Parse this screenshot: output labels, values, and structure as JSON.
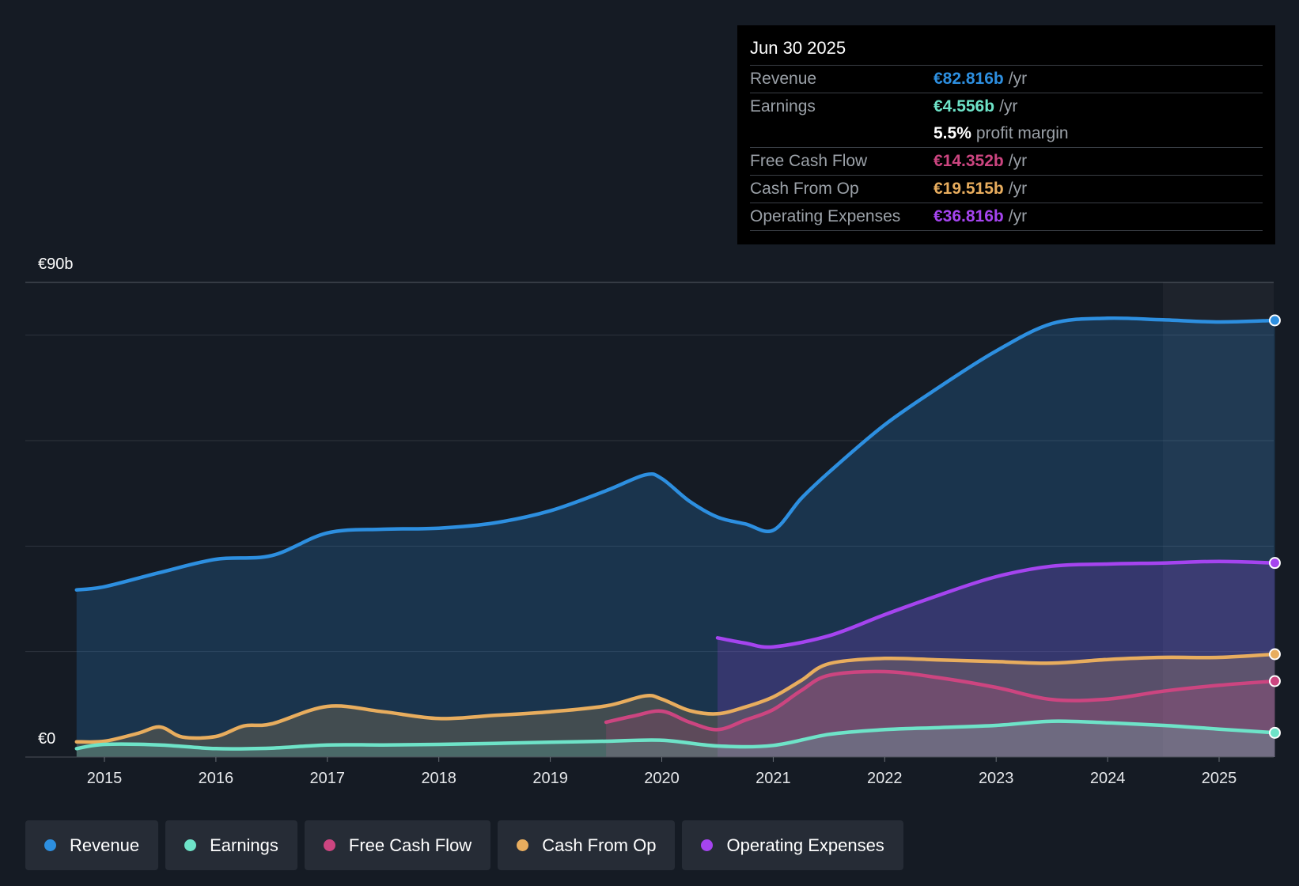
{
  "chart_data": {
    "type": "area",
    "y_axis": {
      "top_label": "€90b",
      "bottom_label": "€0",
      "ylim": [
        0,
        90
      ]
    },
    "x_ticks": [
      "2015",
      "2016",
      "2017",
      "2018",
      "2019",
      "2020",
      "2021",
      "2022",
      "2023",
      "2024",
      "2025"
    ],
    "series": [
      {
        "name": "Revenue",
        "color": "#2d8fe0",
        "points": [
          [
            2014.75,
            31.7
          ],
          [
            2015.0,
            32.3
          ],
          [
            2015.5,
            35.0
          ],
          [
            2016.0,
            37.5
          ],
          [
            2016.5,
            38.2
          ],
          [
            2017.0,
            42.5
          ],
          [
            2017.5,
            43.2
          ],
          [
            2018.0,
            43.4
          ],
          [
            2018.5,
            44.4
          ],
          [
            2019.0,
            46.7
          ],
          [
            2019.5,
            50.5
          ],
          [
            2019.85,
            53.5
          ],
          [
            2020.0,
            52.8
          ],
          [
            2020.25,
            48.5
          ],
          [
            2020.5,
            45.5
          ],
          [
            2020.75,
            44.2
          ],
          [
            2021.0,
            43.0
          ],
          [
            2021.25,
            49.0
          ],
          [
            2021.5,
            54.0
          ],
          [
            2022.0,
            63.0
          ],
          [
            2022.5,
            70.3
          ],
          [
            2023.0,
            77.0
          ],
          [
            2023.5,
            82.2
          ],
          [
            2024.0,
            83.2
          ],
          [
            2024.5,
            82.9
          ],
          [
            2025.0,
            82.5
          ],
          [
            2025.5,
            82.8
          ]
        ]
      },
      {
        "name": "Operating Expenses",
        "color": "#a544ef",
        "points": [
          [
            2020.5,
            22.6
          ],
          [
            2020.75,
            21.6
          ],
          [
            2021.0,
            20.9
          ],
          [
            2021.5,
            23.0
          ],
          [
            2022.0,
            27.0
          ],
          [
            2022.5,
            30.8
          ],
          [
            2023.0,
            34.2
          ],
          [
            2023.5,
            36.2
          ],
          [
            2024.0,
            36.6
          ],
          [
            2024.5,
            36.8
          ],
          [
            2025.0,
            37.1
          ],
          [
            2025.5,
            36.8
          ]
        ]
      },
      {
        "name": "Cash From Op",
        "color": "#e8ad5e",
        "points": [
          [
            2014.75,
            2.9
          ],
          [
            2015.0,
            3.0
          ],
          [
            2015.3,
            4.5
          ],
          [
            2015.5,
            5.7
          ],
          [
            2015.7,
            3.8
          ],
          [
            2016.0,
            3.9
          ],
          [
            2016.25,
            5.9
          ],
          [
            2016.5,
            6.3
          ],
          [
            2017.0,
            9.6
          ],
          [
            2017.5,
            8.6
          ],
          [
            2018.0,
            7.3
          ],
          [
            2018.5,
            7.9
          ],
          [
            2019.0,
            8.6
          ],
          [
            2019.5,
            9.7
          ],
          [
            2019.85,
            11.6
          ],
          [
            2020.0,
            11.0
          ],
          [
            2020.25,
            8.8
          ],
          [
            2020.5,
            8.2
          ],
          [
            2020.75,
            9.5
          ],
          [
            2021.0,
            11.4
          ],
          [
            2021.25,
            14.5
          ],
          [
            2021.5,
            17.7
          ],
          [
            2022.0,
            18.7
          ],
          [
            2022.5,
            18.4
          ],
          [
            2023.0,
            18.1
          ],
          [
            2023.5,
            17.8
          ],
          [
            2024.0,
            18.5
          ],
          [
            2024.5,
            18.9
          ],
          [
            2025.0,
            18.9
          ],
          [
            2025.5,
            19.5
          ]
        ]
      },
      {
        "name": "Free Cash Flow",
        "color": "#cc4580",
        "points": [
          [
            2019.5,
            6.6
          ],
          [
            2019.75,
            7.8
          ],
          [
            2020.0,
            8.7
          ],
          [
            2020.25,
            6.6
          ],
          [
            2020.5,
            5.2
          ],
          [
            2020.75,
            7.0
          ],
          [
            2021.0,
            9.0
          ],
          [
            2021.25,
            12.6
          ],
          [
            2021.5,
            15.5
          ],
          [
            2022.0,
            16.2
          ],
          [
            2022.5,
            15.0
          ],
          [
            2023.0,
            13.2
          ],
          [
            2023.5,
            10.9
          ],
          [
            2024.0,
            11.0
          ],
          [
            2024.5,
            12.5
          ],
          [
            2025.0,
            13.6
          ],
          [
            2025.5,
            14.4
          ]
        ]
      },
      {
        "name": "Earnings",
        "color": "#6ee3c8",
        "points": [
          [
            2014.75,
            1.6
          ],
          [
            2015.0,
            2.4
          ],
          [
            2015.5,
            2.3
          ],
          [
            2016.0,
            1.6
          ],
          [
            2016.5,
            1.7
          ],
          [
            2017.0,
            2.3
          ],
          [
            2017.5,
            2.3
          ],
          [
            2018.0,
            2.4
          ],
          [
            2018.5,
            2.6
          ],
          [
            2019.0,
            2.8
          ],
          [
            2019.5,
            3.0
          ],
          [
            2020.0,
            3.2
          ],
          [
            2020.5,
            2.1
          ],
          [
            2021.0,
            2.2
          ],
          [
            2021.5,
            4.3
          ],
          [
            2022.0,
            5.2
          ],
          [
            2022.5,
            5.6
          ],
          [
            2023.0,
            6.0
          ],
          [
            2023.5,
            6.8
          ],
          [
            2024.0,
            6.5
          ],
          [
            2024.5,
            6.0
          ],
          [
            2025.0,
            5.3
          ],
          [
            2025.5,
            4.6
          ]
        ]
      }
    ]
  },
  "tooltip": {
    "date": "Jun 30 2025",
    "rows": [
      {
        "label": "Revenue",
        "value": "€82.816b",
        "unit": "/yr",
        "color": "#2d8fe0"
      },
      {
        "label": "Earnings",
        "value": "€4.556b",
        "unit": "/yr",
        "color": "#6ee3c8"
      },
      {
        "label": "",
        "value": "5.5%",
        "unit": "profit margin",
        "color": "#ffffff"
      },
      {
        "label": "Free Cash Flow",
        "value": "€14.352b",
        "unit": "/yr",
        "color": "#cc4580"
      },
      {
        "label": "Cash From Op",
        "value": "€19.515b",
        "unit": "/yr",
        "color": "#e8ad5e"
      },
      {
        "label": "Operating Expenses",
        "value": "€36.816b",
        "unit": "/yr",
        "color": "#a544ef"
      }
    ]
  },
  "legend": [
    {
      "label": "Revenue",
      "color": "#2d8fe0"
    },
    {
      "label": "Earnings",
      "color": "#6ee3c8"
    },
    {
      "label": "Free Cash Flow",
      "color": "#cc4580"
    },
    {
      "label": "Cash From Op",
      "color": "#e8ad5e"
    },
    {
      "label": "Operating Expenses",
      "color": "#a544ef"
    }
  ]
}
